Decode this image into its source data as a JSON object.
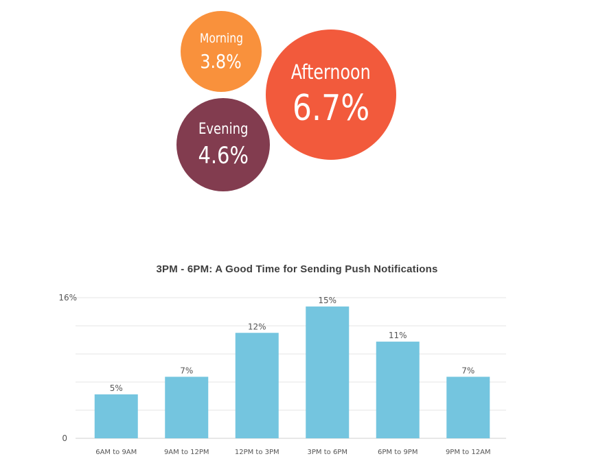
{
  "chart_data": [
    {
      "type": "bubble",
      "items": [
        {
          "id": "morning",
          "label": "Morning",
          "value": 3.8,
          "value_label": "3.8%",
          "color": "#f9913c"
        },
        {
          "id": "afternoon",
          "label": "Afternoon",
          "value": 6.7,
          "value_label": "6.7%",
          "color": "#f25a3c"
        },
        {
          "id": "evening",
          "label": "Evening",
          "value": 4.6,
          "value_label": "4.6%",
          "color": "#823c4f"
        }
      ]
    },
    {
      "type": "bar",
      "title": "3PM - 6PM:  A Good Time for Sending Push Notifications",
      "categories": [
        "6AM to 9AM",
        "9AM to 12PM",
        "12PM to 3PM",
        "3PM to 6PM",
        "6PM to 9PM",
        "9PM to 12AM"
      ],
      "values": [
        5,
        7,
        12,
        15,
        11,
        7
      ],
      "data_labels": [
        "5%",
        "7%",
        "12%",
        "15%",
        "11%",
        "7%"
      ],
      "ylim": [
        0,
        16
      ],
      "y_tick_labels": [
        "0",
        "16%"
      ],
      "grid": true,
      "xlabel": "",
      "ylabel": "",
      "bar_color": "#74c5df"
    }
  ]
}
